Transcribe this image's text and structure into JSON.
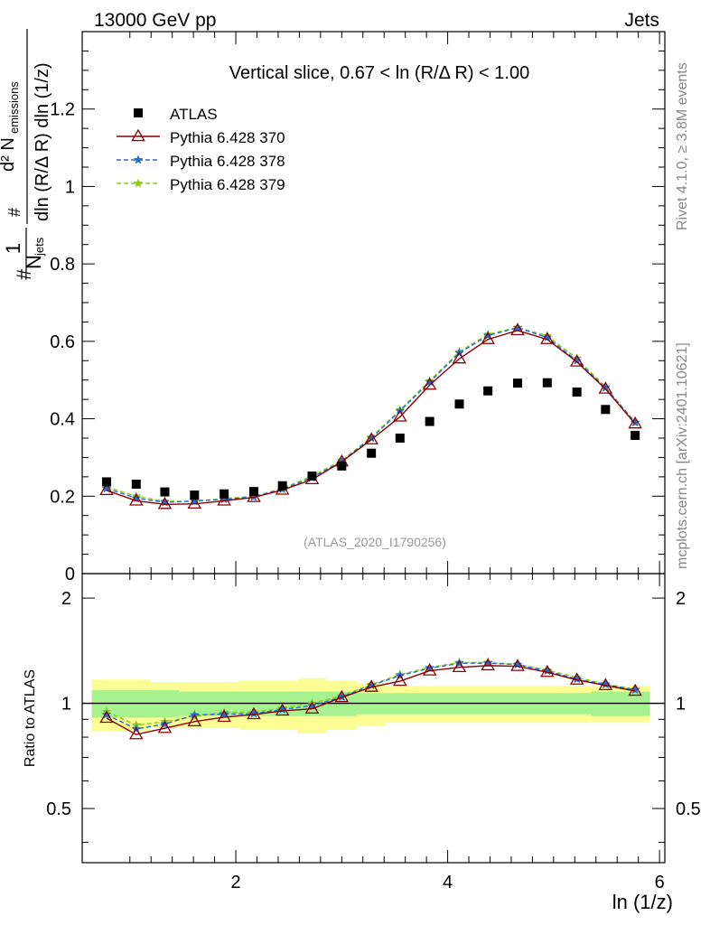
{
  "header": {
    "left": "13000 GeV pp",
    "right": "Jets"
  },
  "side": {
    "rivet": "Rivet 4.1.0, ≥ 3.8M events",
    "mcplots": "mcplots.cern.ch [arXiv:2401.10621]"
  },
  "chart_data": {
    "type": "scatter",
    "title": "Vertical slice, 0.67 < ln (R/Δ R) < 1.00",
    "watermark": "(ATLAS_2020_I1790256)",
    "xlabel": "ln (1/z)",
    "ylabel": {
      "top_numerator": "d² N",
      "top_numerator_sub": "emissions",
      "top_denominator": "dln (R/Δ R) dln (1/z)",
      "frac_numerator": "#",
      "frac_denominator": "N",
      "frac_denominator_sub": "jets",
      "prefix": "#"
    },
    "ratio_ylabel": "Ratio to ATLAS",
    "xlim": [
      0.55,
      6.05
    ],
    "ylim": [
      0,
      1.4
    ],
    "ratio_ylim": [
      0.35,
      2.35
    ],
    "x_ticks": [
      2,
      4,
      6
    ],
    "x_tick_labels": [
      "2",
      "4",
      "6"
    ],
    "y_ticks": [
      0,
      0.2,
      0.4,
      0.6,
      0.8,
      1,
      1.2
    ],
    "y_tick_labels": [
      "0",
      "0.2",
      "0.4",
      "0.6",
      "0.8",
      "1",
      "1.2"
    ],
    "ratio_ticks": [
      0.5,
      1,
      2
    ],
    "ratio_tick_labels": [
      "0.5",
      "1",
      "2"
    ],
    "x": [
      0.78,
      1.06,
      1.33,
      1.61,
      1.89,
      2.17,
      2.44,
      2.72,
      3.0,
      3.28,
      3.55,
      3.83,
      4.11,
      4.38,
      4.66,
      4.94,
      5.22,
      5.49,
      5.77
    ],
    "data": {
      "name": "ATLAS",
      "values": [
        0.237,
        0.231,
        0.211,
        0.203,
        0.206,
        0.212,
        0.227,
        0.252,
        0.278,
        0.311,
        0.35,
        0.393,
        0.438,
        0.472,
        0.492,
        0.493,
        0.469,
        0.424,
        0.357
      ],
      "band_inner": [
        0.09,
        0.09,
        0.09,
        0.08,
        0.08,
        0.08,
        0.08,
        0.08,
        0.08,
        0.07,
        0.07,
        0.07,
        0.07,
        0.07,
        0.07,
        0.07,
        0.07,
        0.08,
        0.08
      ],
      "band_outer": [
        0.17,
        0.17,
        0.15,
        0.15,
        0.15,
        0.16,
        0.16,
        0.18,
        0.16,
        0.14,
        0.12,
        0.12,
        0.12,
        0.12,
        0.12,
        0.12,
        0.12,
        0.12,
        0.12
      ]
    },
    "series": [
      {
        "name": "Pythia 6.428 370",
        "color": "#8b0000",
        "marker": "triangle",
        "dash": "",
        "values": [
          0.215,
          0.188,
          0.179,
          0.18,
          0.188,
          0.197,
          0.216,
          0.243,
          0.289,
          0.346,
          0.405,
          0.487,
          0.555,
          0.605,
          0.628,
          0.605,
          0.547,
          0.477,
          0.387
        ]
      },
      {
        "name": "Pythia 6.428 378",
        "color": "#1f6fd6",
        "marker": "star",
        "dash": "5,3",
        "values": [
          0.22,
          0.195,
          0.184,
          0.188,
          0.192,
          0.198,
          0.218,
          0.248,
          0.29,
          0.35,
          0.42,
          0.495,
          0.57,
          0.615,
          0.635,
          0.61,
          0.55,
          0.48,
          0.39
        ]
      },
      {
        "name": "Pythia 6.428 379",
        "color": "#8ccc1a",
        "marker": "star",
        "dash": "5,3",
        "values": [
          0.224,
          0.2,
          0.187,
          0.186,
          0.194,
          0.2,
          0.22,
          0.252,
          0.292,
          0.352,
          0.423,
          0.498,
          0.573,
          0.618,
          0.636,
          0.614,
          0.556,
          0.482,
          0.391
        ]
      }
    ],
    "colors": {
      "band_inner": "#a6f28f",
      "band_outer": "#fdfd95",
      "data": "#000000",
      "watermark": "#999999",
      "side_text": "#888888"
    }
  }
}
